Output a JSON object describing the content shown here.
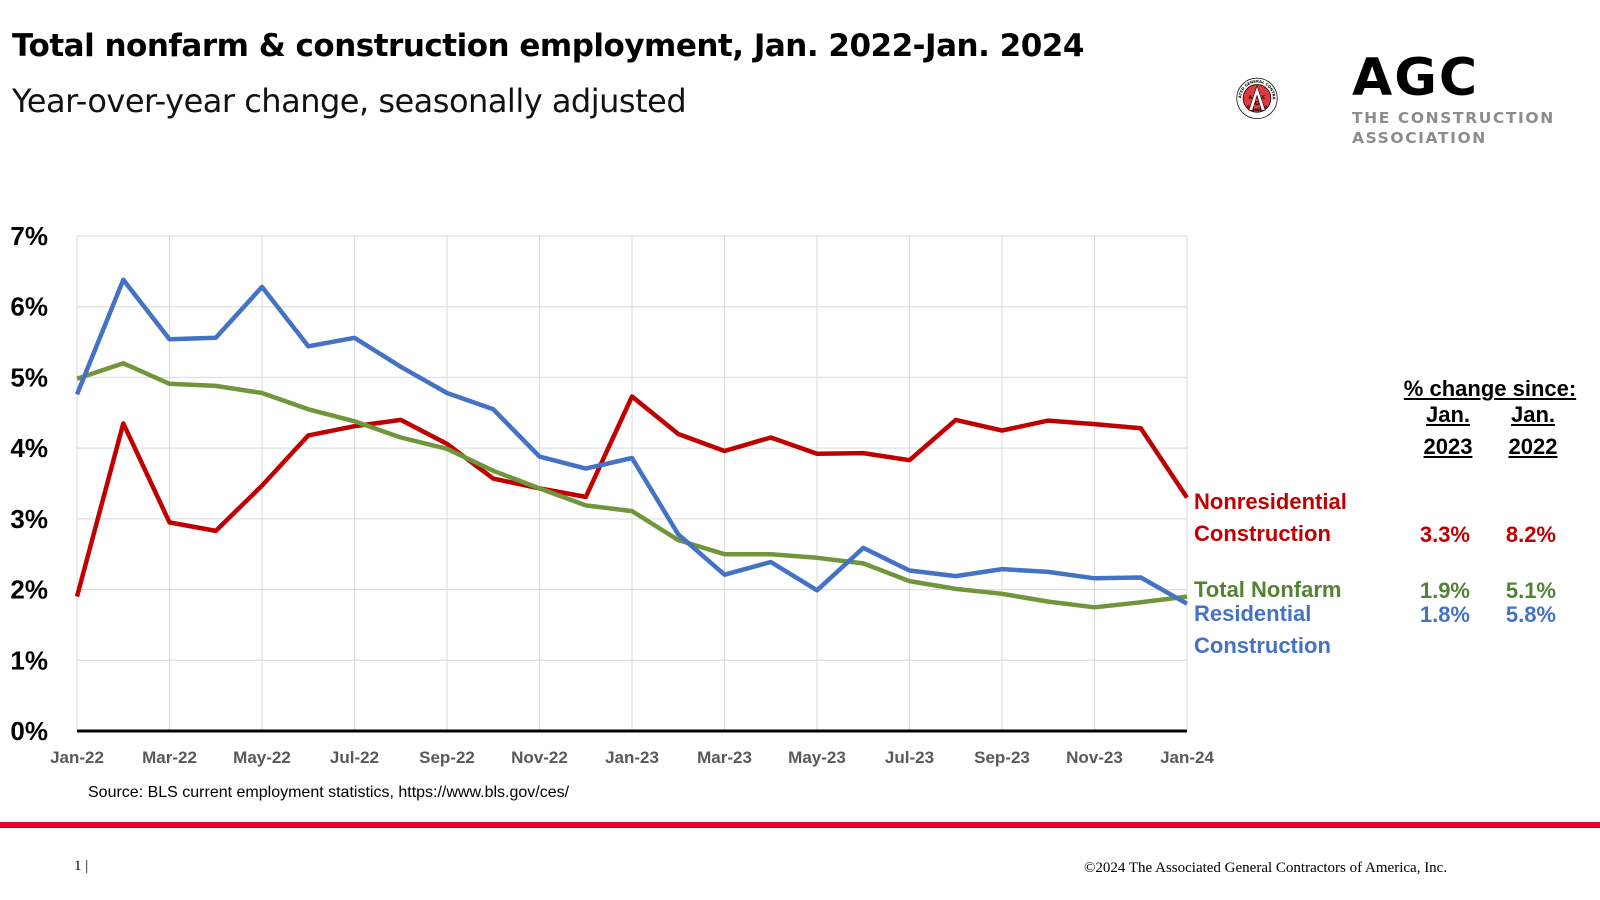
{
  "header": {
    "title": "Total nonfarm & construction employment, Jan. 2022-Jan. 2024",
    "subtitle": "Year-over-year change, seasonally adjusted"
  },
  "logo": {
    "ring_top_text": "ASSOCIATED GENERAL CONTRACTORS",
    "ring_bottom_text": "OF AMERICA",
    "emblem_letters": [
      "A",
      "G",
      "C"
    ],
    "wordmark": "AGC",
    "tagline_line1": "THE CONSTRUCTION",
    "tagline_line2": "ASSOCIATION",
    "brand_red": "#e4002b"
  },
  "chart_data": {
    "type": "line",
    "title": "Total nonfarm & construction employment, Jan. 2022-Jan. 2024",
    "subtitle": "Year-over-year change, seasonally adjusted",
    "xlabel": "",
    "ylabel": "",
    "ylim": [
      0,
      7
    ],
    "y_ticks": [
      "0%",
      "1%",
      "2%",
      "3%",
      "4%",
      "5%",
      "6%",
      "7%"
    ],
    "x": [
      "Jan-22",
      "Feb-22",
      "Mar-22",
      "Apr-22",
      "May-22",
      "Jun-22",
      "Jul-22",
      "Aug-22",
      "Sep-22",
      "Oct-22",
      "Nov-22",
      "Dec-22",
      "Jan-23",
      "Feb-23",
      "Mar-23",
      "Apr-23",
      "May-23",
      "Jun-23",
      "Jul-23",
      "Aug-23",
      "Sep-23",
      "Oct-23",
      "Nov-23",
      "Dec-23",
      "Jan-24"
    ],
    "x_tick_labels": [
      "Jan-22",
      "Mar-22",
      "May-22",
      "Jul-22",
      "Sep-22",
      "Nov-22",
      "Jan-23",
      "Mar-23",
      "May-23",
      "Jul-23",
      "Sep-23",
      "Nov-23",
      "Jan-24"
    ],
    "grid": true,
    "series": [
      {
        "name": "Nonresidential Construction",
        "color": "#c00000",
        "values": [
          1.9,
          4.35,
          2.95,
          2.83,
          3.47,
          4.18,
          4.31,
          4.4,
          4.06,
          3.57,
          3.43,
          3.31,
          4.73,
          4.2,
          3.96,
          4.15,
          3.92,
          3.93,
          3.83,
          4.4,
          4.25,
          4.39,
          4.34,
          4.28,
          3.3
        ]
      },
      {
        "name": "Total Nonfarm",
        "color": "#70963c",
        "values": [
          4.98,
          5.2,
          4.91,
          4.88,
          4.78,
          4.55,
          4.38,
          4.15,
          3.99,
          3.68,
          3.43,
          3.19,
          3.11,
          2.7,
          2.5,
          2.5,
          2.45,
          2.37,
          2.12,
          2.01,
          1.94,
          1.83,
          1.75,
          1.82,
          1.9
        ]
      },
      {
        "name": "Residential Construction",
        "color": "#4472c4",
        "values": [
          4.76,
          6.38,
          5.54,
          5.56,
          6.28,
          5.44,
          5.56,
          5.15,
          4.78,
          4.55,
          3.88,
          3.71,
          3.86,
          2.78,
          2.21,
          2.39,
          1.99,
          2.59,
          2.27,
          2.19,
          2.29,
          2.25,
          2.16,
          2.17,
          1.8
        ]
      }
    ],
    "legend_placement": "right (inline series labels)"
  },
  "summary_table": {
    "heading": "% change since:",
    "columns": [
      {
        "line1": "Jan.",
        "line2": "2023"
      },
      {
        "line1": "Jan.",
        "line2": "2022"
      }
    ],
    "rows": [
      {
        "label_line1": "Nonresidential",
        "label_line2": "Construction",
        "color": "#c00000",
        "since_jan_2023": "3.3%",
        "since_jan_2022": "8.2%"
      },
      {
        "label_line1": "Total Nonfarm",
        "label_line2": "",
        "color": "#548235",
        "since_jan_2023": "1.9%",
        "since_jan_2022": "5.1%"
      },
      {
        "label_line1": "Residential",
        "label_line2": "Construction",
        "color": "#4472c4",
        "since_jan_2023": "1.8%",
        "since_jan_2022": "5.8%"
      }
    ]
  },
  "source": "Source: BLS current employment statistics, https://www.bls.gov/ces/",
  "footer": {
    "page_number": "1 |",
    "copyright": "©2024 The Associated General Contractors of America, Inc."
  }
}
